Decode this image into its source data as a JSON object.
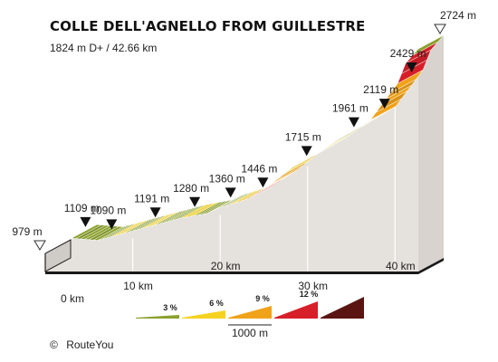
{
  "title": "COLLE DELL'AGNELLO FROM GUILLESTRE",
  "subtitle": "1824 m D+ / 42.66 km",
  "credit": {
    "symbol": "©",
    "text": "RouteYou"
  },
  "chart_data": {
    "type": "area",
    "title": "COLLE DELL'AGNELLO FROM GUILLESTRE",
    "subtitle": "1824 m D+ / 42.66 km",
    "x_unit": "km",
    "y_unit": "m",
    "xlim": [
      0,
      42.66
    ],
    "x_ticks": [
      {
        "value": 0,
        "label": "0 km"
      },
      {
        "value": 10,
        "label": "10 km"
      },
      {
        "value": 20,
        "label": "20 km"
      },
      {
        "value": 30,
        "label": "30 km"
      },
      {
        "value": 40,
        "label": "40 km"
      }
    ],
    "profile": [
      {
        "x": 0,
        "y": 979
      },
      {
        "x": 2,
        "y": 1070
      },
      {
        "x": 3,
        "y": 1109
      },
      {
        "x": 6,
        "y": 1090
      },
      {
        "x": 11,
        "y": 1191
      },
      {
        "x": 14,
        "y": 1250
      },
      {
        "x": 15.5,
        "y": 1280
      },
      {
        "x": 18.5,
        "y": 1320
      },
      {
        "x": 19.6,
        "y": 1360
      },
      {
        "x": 23.3,
        "y": 1446
      },
      {
        "x": 26,
        "y": 1580
      },
      {
        "x": 28.3,
        "y": 1715
      },
      {
        "x": 31.5,
        "y": 1850
      },
      {
        "x": 33.7,
        "y": 1961
      },
      {
        "x": 37.2,
        "y": 2119
      },
      {
        "x": 40.3,
        "y": 2429
      },
      {
        "x": 41.2,
        "y": 2600
      },
      {
        "x": 42.66,
        "y": 2724
      }
    ],
    "segments": [
      {
        "from": 0,
        "to": 0.8,
        "gradient_class": 2
      },
      {
        "from": 0.8,
        "to": 2,
        "gradient_class": 2
      },
      {
        "from": 2,
        "to": 3,
        "gradient_class": 1
      },
      {
        "from": 3,
        "to": 4.5,
        "gradient_class": 0
      },
      {
        "from": 4.5,
        "to": 6,
        "gradient_class": 0
      },
      {
        "from": 6,
        "to": 7.5,
        "gradient_class": 0
      },
      {
        "from": 7.5,
        "to": 9,
        "gradient_class": 1
      },
      {
        "from": 9,
        "to": 11,
        "gradient_class": 0
      },
      {
        "from": 11,
        "to": 12.5,
        "gradient_class": 1
      },
      {
        "from": 12.5,
        "to": 14,
        "gradient_class": 0
      },
      {
        "from": 14,
        "to": 15.5,
        "gradient_class": 0
      },
      {
        "from": 15.5,
        "to": 17,
        "gradient_class": 1
      },
      {
        "from": 17,
        "to": 18.5,
        "gradient_class": 0
      },
      {
        "from": 18.5,
        "to": 19.6,
        "gradient_class": 0
      },
      {
        "from": 19.6,
        "to": 21,
        "gradient_class": 0
      },
      {
        "from": 21,
        "to": 22.3,
        "gradient_class": 1
      },
      {
        "from": 22.3,
        "to": 23.3,
        "gradient_class": 2
      },
      {
        "from": 23.3,
        "to": 24.5,
        "gradient_class": 3
      },
      {
        "from": 24.5,
        "to": 26,
        "gradient_class": 2
      },
      {
        "from": 26,
        "to": 27.2,
        "gradient_class": 2
      },
      {
        "from": 27.2,
        "to": 28.3,
        "gradient_class": 1
      },
      {
        "from": 28.3,
        "to": 29.5,
        "gradient_class": 2
      },
      {
        "from": 29.5,
        "to": 30.5,
        "gradient_class": 1
      },
      {
        "from": 30.5,
        "to": 31.5,
        "gradient_class": 2
      },
      {
        "from": 31.5,
        "to": 32.6,
        "gradient_class": 1
      },
      {
        "from": 32.6,
        "to": 33.7,
        "gradient_class": 0
      },
      {
        "from": 33.7,
        "to": 35,
        "gradient_class": 1
      },
      {
        "from": 35,
        "to": 36,
        "gradient_class": 2
      },
      {
        "from": 36,
        "to": 37.2,
        "gradient_class": 2
      },
      {
        "from": 37.2,
        "to": 38.5,
        "gradient_class": 2
      },
      {
        "from": 38.5,
        "to": 39.5,
        "gradient_class": 2
      },
      {
        "from": 39.5,
        "to": 40.3,
        "gradient_class": 2
      },
      {
        "from": 40.3,
        "to": 41.2,
        "gradient_class": 3
      },
      {
        "from": 41.2,
        "to": 42,
        "gradient_class": 3
      },
      {
        "from": 42,
        "to": 42.66,
        "gradient_class": 0
      }
    ],
    "waypoints": [
      {
        "x": 0,
        "y": 979,
        "label": "979 m",
        "marker": "start"
      },
      {
        "x": 3,
        "y": 1109,
        "label": "1109 m",
        "marker": "down"
      },
      {
        "x": 6,
        "y": 1090,
        "label": "1090 m",
        "marker": "down"
      },
      {
        "x": 11,
        "y": 1191,
        "label": "1191 m",
        "marker": "down"
      },
      {
        "x": 15.5,
        "y": 1280,
        "label": "1280 m",
        "marker": "down"
      },
      {
        "x": 19.6,
        "y": 1360,
        "label": "1360 m",
        "marker": "down"
      },
      {
        "x": 23.3,
        "y": 1446,
        "label": "1446 m",
        "marker": "down"
      },
      {
        "x": 28.3,
        "y": 1715,
        "label": "1715 m",
        "marker": "down"
      },
      {
        "x": 33.7,
        "y": 1961,
        "label": "1961 m",
        "marker": "down"
      },
      {
        "x": 37.2,
        "y": 2119,
        "label": "2119 m",
        "marker": "down"
      },
      {
        "x": 40.3,
        "y": 2429,
        "label": "2429 m",
        "marker": "down"
      },
      {
        "x": 42.66,
        "y": 2724,
        "label": "2724 m",
        "marker": "summit"
      }
    ],
    "legend": {
      "classes": [
        {
          "label": "3 %",
          "color": "#8aa12d"
        },
        {
          "label": "6 %",
          "color": "#f5d21f"
        },
        {
          "label": "9 %",
          "color": "#f0a31a"
        },
        {
          "label": "12 %",
          "color": "#d61f29"
        },
        {
          "label": "",
          "color": "#5a1512"
        }
      ],
      "scale_label": "1000 m"
    },
    "colors": {
      "side_face": "#e5e1dc",
      "left_face": "#cfcbc6",
      "base": "#1a1a1a",
      "gridline": "#ffffff"
    }
  }
}
